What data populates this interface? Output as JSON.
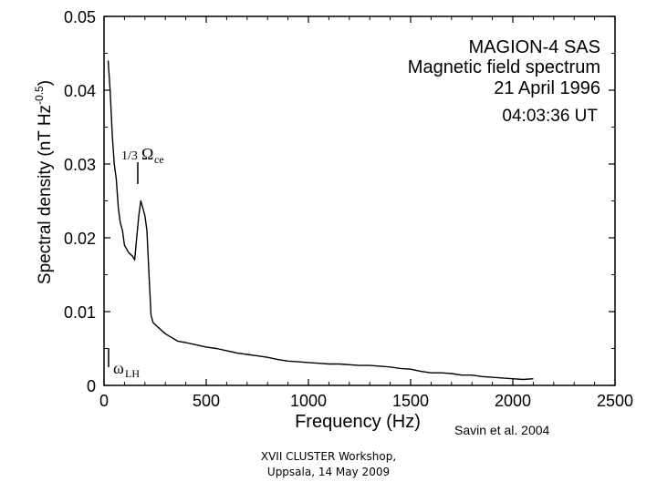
{
  "chart_data": {
    "type": "line",
    "title_lines": [
      "MAGION-4 SAS",
      "Magnetic field spectrum",
      "21 April 1996"
    ],
    "time_label": "04:03:36 UT",
    "xlabel": "Frequency (Hz)",
    "ylabel": "Spectral density (nT Hz",
    "ylabel_exponent": "-0.5",
    "ylabel_close": ")",
    "xlim": [
      0,
      2500
    ],
    "ylim": [
      0,
      0.05
    ],
    "xticks": [
      0,
      500,
      1000,
      1500,
      2000,
      2500
    ],
    "xtick_labels": [
      "0",
      "500",
      "1000",
      "1500",
      "2000",
      "2500"
    ],
    "yticks": [
      0,
      0.01,
      0.02,
      0.03,
      0.04,
      0.05
    ],
    "ytick_labels": [
      "0",
      "0.01",
      "0.02",
      "0.03",
      "0.04",
      "0.05"
    ],
    "grid": false,
    "series": [
      {
        "x": [
          20,
          30,
          40,
          50,
          60,
          70,
          80,
          90,
          100,
          120,
          140,
          150,
          160,
          170,
          180,
          190,
          200,
          210,
          220,
          230,
          240,
          260,
          280,
          300,
          330,
          360,
          400,
          450,
          500,
          550,
          600,
          650,
          700,
          750,
          800,
          850,
          900,
          950,
          1000,
          1050,
          1100,
          1150,
          1200,
          1250,
          1300,
          1350,
          1400,
          1450,
          1500,
          1550,
          1600,
          1650,
          1700,
          1750,
          1800,
          1850,
          1900,
          1950,
          2000,
          2050,
          2100
        ],
        "y": [
          0.044,
          0.04,
          0.034,
          0.03,
          0.028,
          0.024,
          0.022,
          0.021,
          0.019,
          0.018,
          0.0175,
          0.017,
          0.02,
          0.023,
          0.025,
          0.024,
          0.023,
          0.021,
          0.015,
          0.0095,
          0.0085,
          0.008,
          0.0075,
          0.007,
          0.0065,
          0.006,
          0.0058,
          0.0055,
          0.0052,
          0.005,
          0.0047,
          0.0044,
          0.0042,
          0.004,
          0.0038,
          0.0035,
          0.0033,
          0.0032,
          0.0031,
          0.003,
          0.0029,
          0.0029,
          0.0028,
          0.0027,
          0.0027,
          0.0026,
          0.0025,
          0.0023,
          0.0022,
          0.0019,
          0.0017,
          0.0017,
          0.0016,
          0.0014,
          0.0014,
          0.0012,
          0.0011,
          0.001,
          0.0009,
          0.0008,
          0.0009
        ]
      }
    ],
    "annotations": [
      {
        "label": "1/3",
        "symbol": "Ω",
        "subscript": "ce",
        "x": 175,
        "y": 0.025
      },
      {
        "symbol": "ω",
        "subscript": "LH",
        "x": 40,
        "y": 0.001
      }
    ],
    "credit": "Savin et al. 2004"
  },
  "footer": {
    "line1": "XVII CLUSTER Workshop,",
    "line2": "Uppsala, 14 May 2009"
  }
}
